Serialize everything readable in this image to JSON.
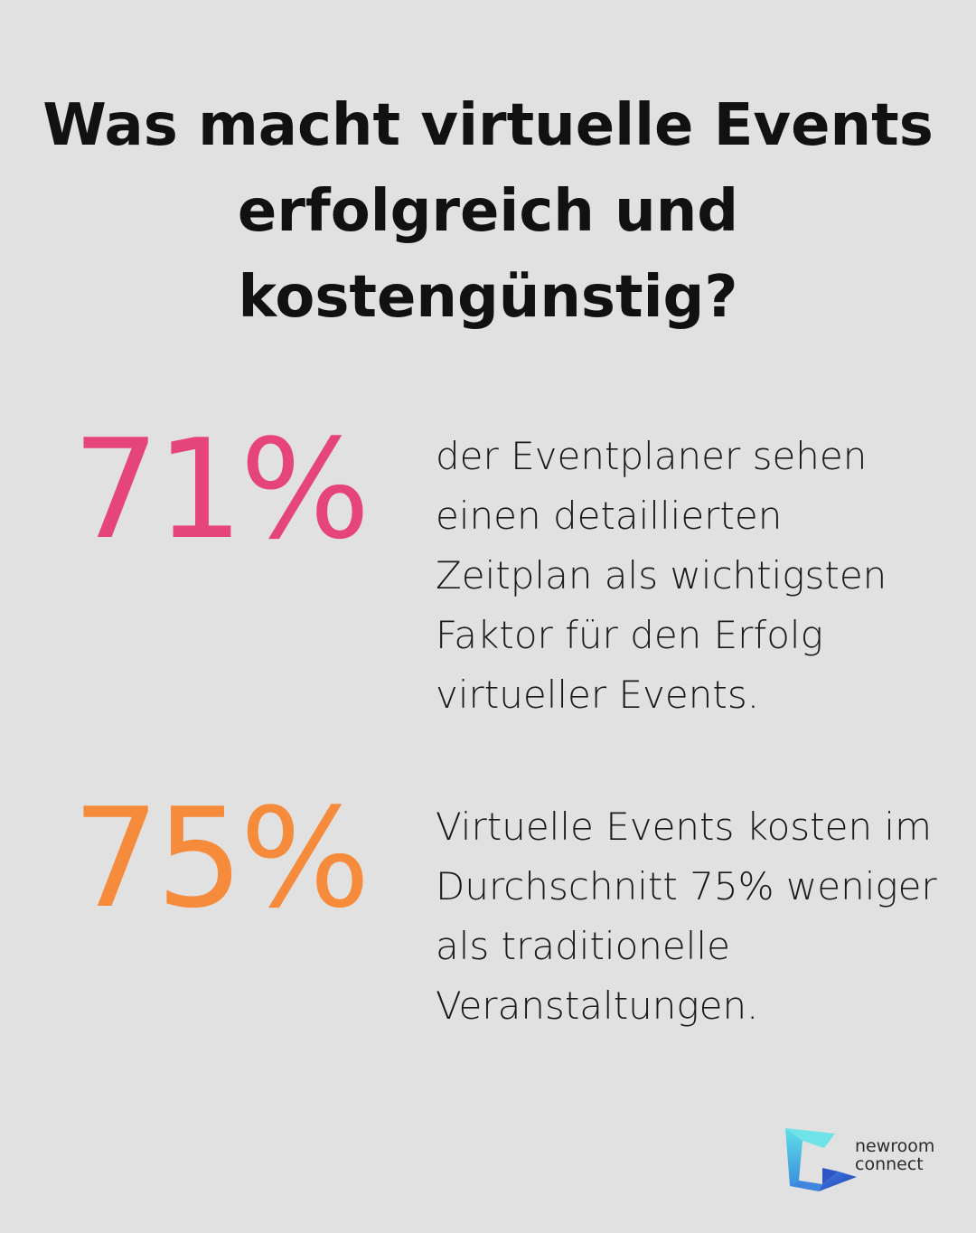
{
  "title": "Was macht virtuelle Events erfolgreich und kostengünstig?",
  "stats": [
    {
      "value": "71%",
      "color": "#e5457a",
      "text": "der Eventplaner sehen einen detaillierten Zeitplan als wichtigsten Faktor für den Erfolg virtueller Events."
    },
    {
      "value": "75%",
      "color": "#f58b3b",
      "text": "Virtuelle Events kosten im Durchschnitt 75% weniger als traditionelle Veranstaltungen."
    }
  ],
  "logo": {
    "line1": "newroom",
    "line2": "connect",
    "icon": "newroom-connect-logo-icon"
  }
}
